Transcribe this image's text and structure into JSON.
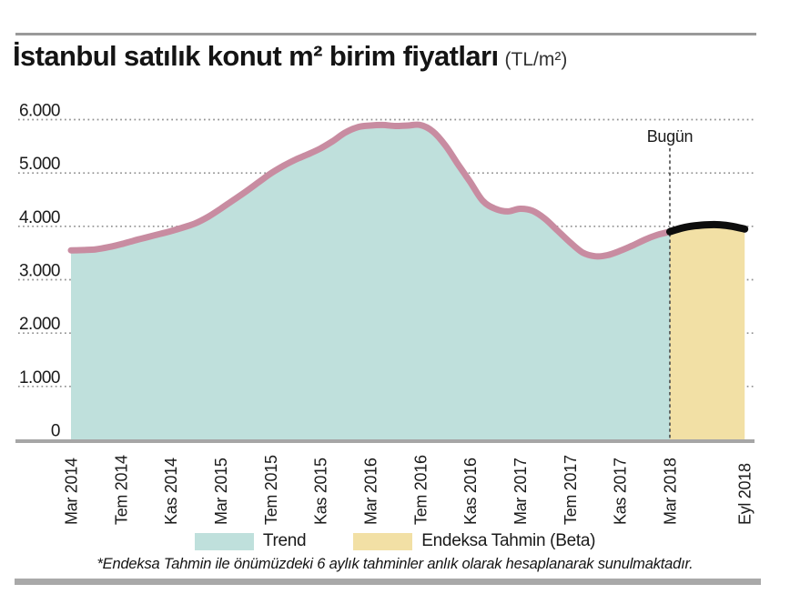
{
  "header": {
    "title": "İstanbul satılık konut m² birim fiyatları",
    "unit": "(TL/m²)"
  },
  "chart_data": {
    "type": "area",
    "title": "İstanbul satılık konut m² birim fiyatları (TL/m²)",
    "ylabel": "TL/m²",
    "ylim": [
      0,
      6400
    ],
    "grid": "horizontal-dotted",
    "x_unit": "months since Mar 2014",
    "y_ticks": [
      {
        "label": "0",
        "value": 0
      },
      {
        "label": "1.000",
        "value": 1000
      },
      {
        "label": "2.000",
        "value": 2000
      },
      {
        "label": "3.000",
        "value": 3000
      },
      {
        "label": "4.000",
        "value": 4000
      },
      {
        "label": "5.000",
        "value": 5000
      },
      {
        "label": "6.000",
        "value": 6000
      }
    ],
    "x_ticks": [
      {
        "label": "Mar 2014",
        "month": 0
      },
      {
        "label": "Tem 2014",
        "month": 4
      },
      {
        "label": "Kas 2014",
        "month": 8
      },
      {
        "label": "Mar 2015",
        "month": 12
      },
      {
        "label": "Tem 2015",
        "month": 16
      },
      {
        "label": "Kas 2015",
        "month": 20
      },
      {
        "label": "Mar 2016",
        "month": 24
      },
      {
        "label": "Tem 2016",
        "month": 28
      },
      {
        "label": "Kas 2016",
        "month": 32
      },
      {
        "label": "Mar 2017",
        "month": 36
      },
      {
        "label": "Tem 2017",
        "month": 40
      },
      {
        "label": "Kas 2017",
        "month": 44
      },
      {
        "label": "Mar 2018",
        "month": 48
      },
      {
        "label": "Eyl 2018",
        "month": 54
      }
    ],
    "series": [
      {
        "name": "Trend",
        "kind": "area",
        "start_month": 0,
        "line_color": "#c88ca1",
        "fill_color": "#bfe0dc",
        "line_width": 7,
        "values": [
          3550,
          3555,
          3570,
          3610,
          3665,
          3730,
          3790,
          3850,
          3910,
          3980,
          4060,
          4180,
          4330,
          4490,
          4650,
          4820,
          4990,
          5130,
          5250,
          5350,
          5460,
          5600,
          5760,
          5860,
          5890,
          5900,
          5880,
          5890,
          5900,
          5780,
          5520,
          5170,
          4830,
          4480,
          4330,
          4280,
          4330,
          4290,
          4140,
          3920,
          3700,
          3510,
          3440,
          3460,
          3540,
          3640,
          3750,
          3840,
          3900
        ]
      },
      {
        "name": "Endeksa Tahmin (Beta)",
        "kind": "area",
        "start_month": 48,
        "line_color": "#0d0d0d",
        "fill_color": "#f2e0a5",
        "line_width": 8,
        "values": [
          3900,
          3970,
          4010,
          4030,
          4030,
          4000,
          3950
        ]
      }
    ],
    "annotation": {
      "label": "Bugün",
      "month": 48
    }
  },
  "legend": {
    "items": [
      {
        "label": "Trend",
        "color": "#bfe0dc"
      },
      {
        "label": "Endeksa Tahmin (Beta)",
        "color": "#f2e0a5"
      }
    ]
  },
  "footnote": "*Endeksa Tahmin ile önümüzdeki 6 aylık tahminler anlık olarak hesaplanarak sunulmaktadır.",
  "colors": {
    "grid": "#8f8f8f",
    "axis": "#a6a6a6",
    "rule_top": "#999999",
    "rule_bottom": "#a9a9a9",
    "text": "#1a1a1a",
    "today_line": "#4a4a4a"
  }
}
